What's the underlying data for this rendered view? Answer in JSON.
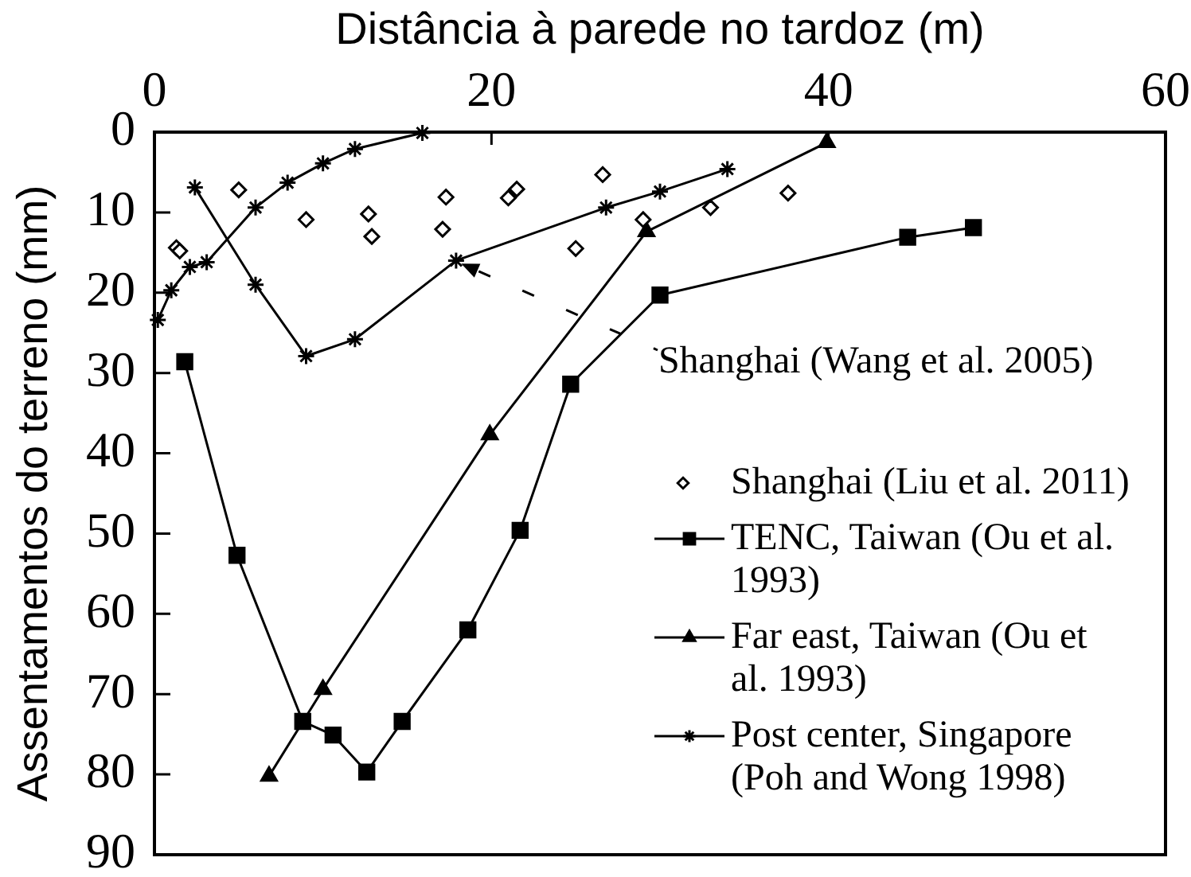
{
  "chart_data": {
    "type": "line",
    "xlabel": "Distância à parede no tardoz (m)",
    "ylabel": "Assentamentos do terreno (mm)",
    "xlim": [
      0,
      60
    ],
    "xticks": [
      0,
      20,
      40,
      60
    ],
    "ylim": [
      90,
      0
    ],
    "yticks": [
      0,
      10,
      20,
      30,
      40,
      50,
      60,
      70,
      80,
      90
    ],
    "legend": "bottom right",
    "annotations": [
      {
        "text": "Shanghai (Wang et al. 2005)",
        "x": 17.9,
        "y": 16.0
      }
    ],
    "series": [
      {
        "color": "#000000",
        "marker": "cross",
        "x": [
          2.4,
          6.0,
          9.0,
          11.9,
          17.9,
          26.8,
          30.0,
          34.0
        ],
        "values": [
          6.9,
          19.0,
          27.9,
          25.8,
          16.0,
          9.4,
          7.4,
          4.6
        ]
      },
      {
        "type": "scatter",
        "name": "Shanghai (Liu et al. 2011)",
        "color": "#000000",
        "marker": "diamond",
        "x": [
          1.3,
          1.5,
          5.0,
          9.0,
          12.7,
          12.9,
          17.1,
          17.3,
          21.0,
          21.5,
          25.0,
          26.6,
          29.0,
          33.0,
          37.6
        ],
        "values": [
          14.4,
          14.8,
          7.2,
          10.9,
          10.2,
          13.0,
          12.1,
          8.1,
          8.2,
          7.1,
          14.5,
          5.3,
          10.9,
          9.4,
          7.6
        ]
      },
      {
        "name": "TENC, Taiwan (Ou et al. 1993)",
        "color": "#000000",
        "marker": "square",
        "x": [
          1.8,
          4.9,
          8.8,
          10.6,
          12.6,
          14.7,
          18.6,
          21.7,
          24.7,
          30.0,
          44.7,
          48.6
        ],
        "values": [
          28.6,
          52.7,
          73.4,
          75.1,
          79.7,
          73.4,
          62.0,
          49.6,
          31.4,
          20.3,
          13.1,
          11.9
        ]
      },
      {
        "name": "Far east, Taiwan (Ou et al. 1993)",
        "color": "#000000",
        "marker": "triangle",
        "x": [
          6.8,
          10.0,
          19.9,
          29.2,
          39.9
        ],
        "values": [
          80.2,
          69.4,
          37.7,
          12.4,
          1.3
        ]
      },
      {
        "name": "Post center, Singapore (Poh and Wong 1998)",
        "color": "#000000",
        "marker": "cross",
        "x": [
          0.2,
          1.0,
          2.1,
          3.1,
          6.0,
          7.9,
          10.0,
          11.9,
          15.9
        ],
        "values": [
          23.4,
          19.7,
          16.8,
          16.2,
          9.4,
          6.3,
          3.9,
          2.1,
          0.1
        ]
      }
    ]
  }
}
